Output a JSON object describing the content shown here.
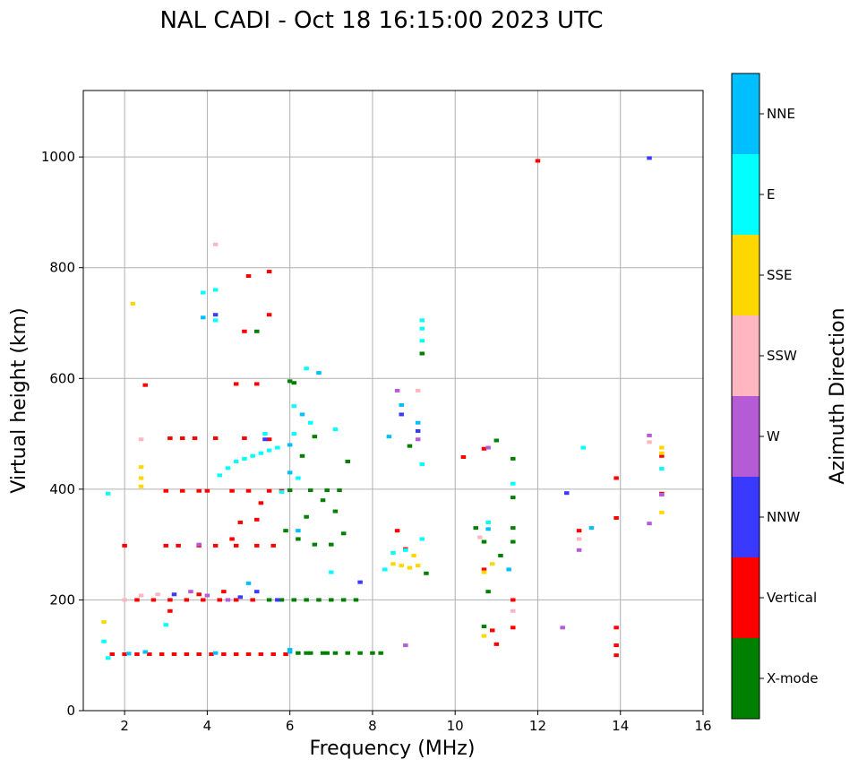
{
  "chart_data": {
    "type": "scatter",
    "title": "NAL CADI - Oct 18 16:15:00 2023 UTC",
    "xlabel": "Frequency (MHz)",
    "ylabel": "Virtual height (km)",
    "xlim": [
      1,
      16
    ],
    "ylim": [
      0,
      1120
    ],
    "xticks": [
      2,
      4,
      6,
      8,
      10,
      12,
      14,
      16
    ],
    "yticks": [
      0,
      200,
      400,
      600,
      800,
      1000
    ],
    "grid": true,
    "colorbar": {
      "label": "Azimuth Direction",
      "categories": [
        {
          "name": "X-mode",
          "color": "#008000"
        },
        {
          "name": "Vertical",
          "color": "#ff0000"
        },
        {
          "name": "NNW",
          "color": "#3a3aff"
        },
        {
          "name": "W",
          "color": "#b65bd6"
        },
        {
          "name": "SSW",
          "color": "#ffb6c1"
        },
        {
          "name": "SSE",
          "color": "#ffd700"
        },
        {
          "name": "E",
          "color": "#00ffff"
        },
        {
          "name": "NNE",
          "color": "#00bfff"
        }
      ]
    },
    "series": [
      {
        "name": "X-mode",
        "points": [
          [
            6.2,
            104
          ],
          [
            6.5,
            104
          ],
          [
            6.8,
            104
          ],
          [
            7.1,
            104
          ],
          [
            7.4,
            104
          ],
          [
            7.7,
            104
          ],
          [
            8.0,
            104
          ],
          [
            8.2,
            104
          ],
          [
            6.4,
            104
          ],
          [
            6.9,
            104
          ],
          [
            5.5,
            200
          ],
          [
            5.8,
            200
          ],
          [
            6.1,
            200
          ],
          [
            6.4,
            200
          ],
          [
            6.7,
            200
          ],
          [
            7.0,
            200
          ],
          [
            7.3,
            200
          ],
          [
            7.6,
            200
          ],
          [
            6.0,
            398
          ],
          [
            6.5,
            398
          ],
          [
            6.9,
            398
          ],
          [
            7.2,
            398
          ],
          [
            6.3,
            460
          ],
          [
            6.6,
            495
          ],
          [
            6.0,
            595
          ],
          [
            6.1,
            592
          ],
          [
            5.2,
            685
          ],
          [
            5.9,
            325
          ],
          [
            6.2,
            310
          ],
          [
            6.6,
            300
          ],
          [
            7.0,
            300
          ],
          [
            7.3,
            320
          ],
          [
            7.1,
            360
          ],
          [
            6.8,
            380
          ],
          [
            6.4,
            350
          ],
          [
            7.4,
            450
          ],
          [
            9.3,
            248
          ],
          [
            9.2,
            645
          ],
          [
            8.9,
            478
          ],
          [
            10.7,
            305
          ],
          [
            11.1,
            280
          ],
          [
            10.5,
            330
          ],
          [
            11.4,
            455
          ],
          [
            11.4,
            385
          ],
          [
            11.4,
            330
          ],
          [
            11.4,
            305
          ],
          [
            11.0,
            488
          ],
          [
            10.8,
            215
          ],
          [
            10.7,
            152
          ]
        ]
      },
      {
        "name": "Vertical",
        "points": [
          [
            1.7,
            102
          ],
          [
            2.0,
            102
          ],
          [
            2.3,
            102
          ],
          [
            2.6,
            102
          ],
          [
            2.9,
            102
          ],
          [
            3.2,
            102
          ],
          [
            3.5,
            102
          ],
          [
            3.8,
            102
          ],
          [
            4.1,
            102
          ],
          [
            4.4,
            102
          ],
          [
            4.7,
            102
          ],
          [
            5.0,
            102
          ],
          [
            5.3,
            102
          ],
          [
            5.6,
            102
          ],
          [
            5.9,
            102
          ],
          [
            2.3,
            200
          ],
          [
            2.7,
            200
          ],
          [
            3.1,
            200
          ],
          [
            3.5,
            200
          ],
          [
            3.9,
            200
          ],
          [
            4.3,
            200
          ],
          [
            4.7,
            200
          ],
          [
            5.1,
            200
          ],
          [
            2.0,
            298
          ],
          [
            3.0,
            298
          ],
          [
            3.3,
            298
          ],
          [
            3.8,
            298
          ],
          [
            4.2,
            298
          ],
          [
            4.7,
            298
          ],
          [
            5.2,
            298
          ],
          [
            5.6,
            298
          ],
          [
            3.0,
            397
          ],
          [
            3.4,
            397
          ],
          [
            3.8,
            397
          ],
          [
            4.0,
            397
          ],
          [
            4.6,
            397
          ],
          [
            5.0,
            397
          ],
          [
            5.5,
            397
          ],
          [
            5.8,
            397
          ],
          [
            3.1,
            492
          ],
          [
            3.4,
            492
          ],
          [
            3.7,
            492
          ],
          [
            4.2,
            492
          ],
          [
            4.9,
            492
          ],
          [
            5.5,
            490
          ],
          [
            2.5,
            588
          ],
          [
            4.7,
            590
          ],
          [
            5.2,
            590
          ],
          [
            5.5,
            793
          ],
          [
            5.0,
            785
          ],
          [
            4.9,
            685
          ],
          [
            5.5,
            715
          ],
          [
            5.2,
            345
          ],
          [
            4.8,
            340
          ],
          [
            5.3,
            375
          ],
          [
            4.6,
            310
          ],
          [
            3.1,
            180
          ],
          [
            3.8,
            210
          ],
          [
            4.4,
            215
          ],
          [
            10.2,
            458
          ],
          [
            10.7,
            473
          ],
          [
            11.4,
            200
          ],
          [
            11.4,
            150
          ],
          [
            10.7,
            255
          ],
          [
            11.0,
            120
          ],
          [
            10.9,
            145
          ],
          [
            12.0,
            993
          ],
          [
            13.0,
            325
          ],
          [
            13.9,
            420
          ],
          [
            13.9,
            348
          ],
          [
            13.9,
            150
          ],
          [
            13.9,
            100
          ],
          [
            13.9,
            118
          ],
          [
            15.0,
            460
          ],
          [
            15.0,
            392
          ],
          [
            8.6,
            325
          ],
          [
            8.8,
            292
          ]
        ]
      },
      {
        "name": "NNW",
        "points": [
          [
            4.2,
            715
          ],
          [
            5.4,
            490
          ],
          [
            5.2,
            215
          ],
          [
            5.7,
            200
          ],
          [
            7.7,
            232
          ],
          [
            9.1,
            505
          ],
          [
            8.7,
            535
          ],
          [
            14.7,
            998
          ],
          [
            12.7,
            393
          ],
          [
            3.2,
            210
          ],
          [
            4.8,
            205
          ]
        ]
      },
      {
        "name": "W",
        "points": [
          [
            4.5,
            200
          ],
          [
            3.6,
            215
          ],
          [
            4.0,
            208
          ],
          [
            9.1,
            490
          ],
          [
            8.8,
            118
          ],
          [
            8.6,
            578
          ],
          [
            12.6,
            150
          ],
          [
            13.0,
            290
          ],
          [
            14.7,
            497
          ],
          [
            14.7,
            338
          ],
          [
            10.8,
            475
          ],
          [
            15.0,
            390
          ],
          [
            3.8,
            300
          ]
        ]
      },
      {
        "name": "SSW",
        "points": [
          [
            2.4,
            490
          ],
          [
            4.2,
            842
          ],
          [
            2.4,
            208
          ],
          [
            2.8,
            210
          ],
          [
            2.0,
            200
          ],
          [
            9.1,
            578
          ],
          [
            10.6,
            313
          ],
          [
            11.4,
            180
          ],
          [
            14.7,
            485
          ],
          [
            13.0,
            310
          ]
        ]
      },
      {
        "name": "SSE",
        "points": [
          [
            2.2,
            735
          ],
          [
            2.4,
            440
          ],
          [
            2.4,
            420
          ],
          [
            2.4,
            405
          ],
          [
            1.5,
            160
          ],
          [
            8.5,
            265
          ],
          [
            8.7,
            262
          ],
          [
            8.9,
            258
          ],
          [
            9.1,
            262
          ],
          [
            9.0,
            280
          ],
          [
            10.7,
            135
          ],
          [
            10.9,
            265
          ],
          [
            10.7,
            250
          ],
          [
            15.0,
            475
          ],
          [
            15.0,
            465
          ],
          [
            15.0,
            358
          ]
        ]
      },
      {
        "name": "E",
        "points": [
          [
            1.6,
            392
          ],
          [
            1.5,
            125
          ],
          [
            1.6,
            95
          ],
          [
            3.0,
            155
          ],
          [
            4.3,
            425
          ],
          [
            4.5,
            438
          ],
          [
            4.7,
            450
          ],
          [
            4.9,
            455
          ],
          [
            5.1,
            460
          ],
          [
            5.3,
            465
          ],
          [
            5.5,
            470
          ],
          [
            5.7,
            475
          ],
          [
            5.4,
            500
          ],
          [
            4.2,
            705
          ],
          [
            6.1,
            500
          ],
          [
            6.5,
            520
          ],
          [
            7.1,
            508
          ],
          [
            5.8,
            395
          ],
          [
            6.2,
            420
          ],
          [
            7.0,
            250
          ],
          [
            8.3,
            255
          ],
          [
            8.5,
            285
          ],
          [
            8.8,
            290
          ],
          [
            9.2,
            310
          ],
          [
            9.2,
            445
          ],
          [
            9.2,
            668
          ],
          [
            9.2,
            705
          ],
          [
            9.2,
            690
          ],
          [
            10.8,
            340
          ],
          [
            11.4,
            410
          ],
          [
            13.1,
            475
          ],
          [
            15.0,
            437
          ],
          [
            6.1,
            550
          ],
          [
            4.2,
            760
          ],
          [
            3.9,
            755
          ],
          [
            6.4,
            618
          ]
        ]
      },
      {
        "name": "NNE",
        "points": [
          [
            2.1,
            103
          ],
          [
            2.5,
            106
          ],
          [
            4.2,
            104
          ],
          [
            6.0,
            106
          ],
          [
            6.7,
            610
          ],
          [
            6.3,
            535
          ],
          [
            6.0,
            480
          ],
          [
            6.0,
            430
          ],
          [
            6.2,
            325
          ],
          [
            5.0,
            230
          ],
          [
            9.1,
            520
          ],
          [
            8.7,
            552
          ],
          [
            8.4,
            495
          ],
          [
            10.8,
            328
          ],
          [
            11.3,
            255
          ],
          [
            13.3,
            330
          ],
          [
            6.0,
            110
          ],
          [
            3.9,
            710
          ]
        ]
      }
    ]
  }
}
